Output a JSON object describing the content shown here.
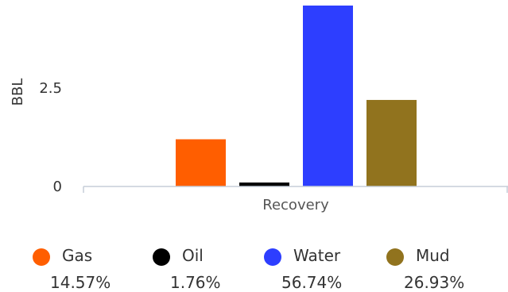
{
  "chart_data": {
    "type": "bar",
    "categories": [
      "Recovery"
    ],
    "series": [
      {
        "name": "Gas",
        "values": [
          1.2
        ],
        "color": "#ff5e00",
        "percent": "14.57%"
      },
      {
        "name": "Oil",
        "values": [
          0.1
        ],
        "color": "#000000",
        "percent": "1.76%"
      },
      {
        "name": "Water",
        "values": [
          4.6
        ],
        "color": "#2d3eff",
        "percent": "56.74%"
      },
      {
        "name": "Mud",
        "values": [
          2.2
        ],
        "color": "#91731e",
        "percent": "26.93%"
      }
    ],
    "ylabel": "BBL",
    "xlabel": "",
    "ylim": [
      0,
      4.6
    ],
    "yticks": [
      {
        "value": 0,
        "label": "0"
      },
      {
        "value": 2.5,
        "label": "2.5"
      }
    ],
    "legend": "bottom",
    "grid": false
  }
}
